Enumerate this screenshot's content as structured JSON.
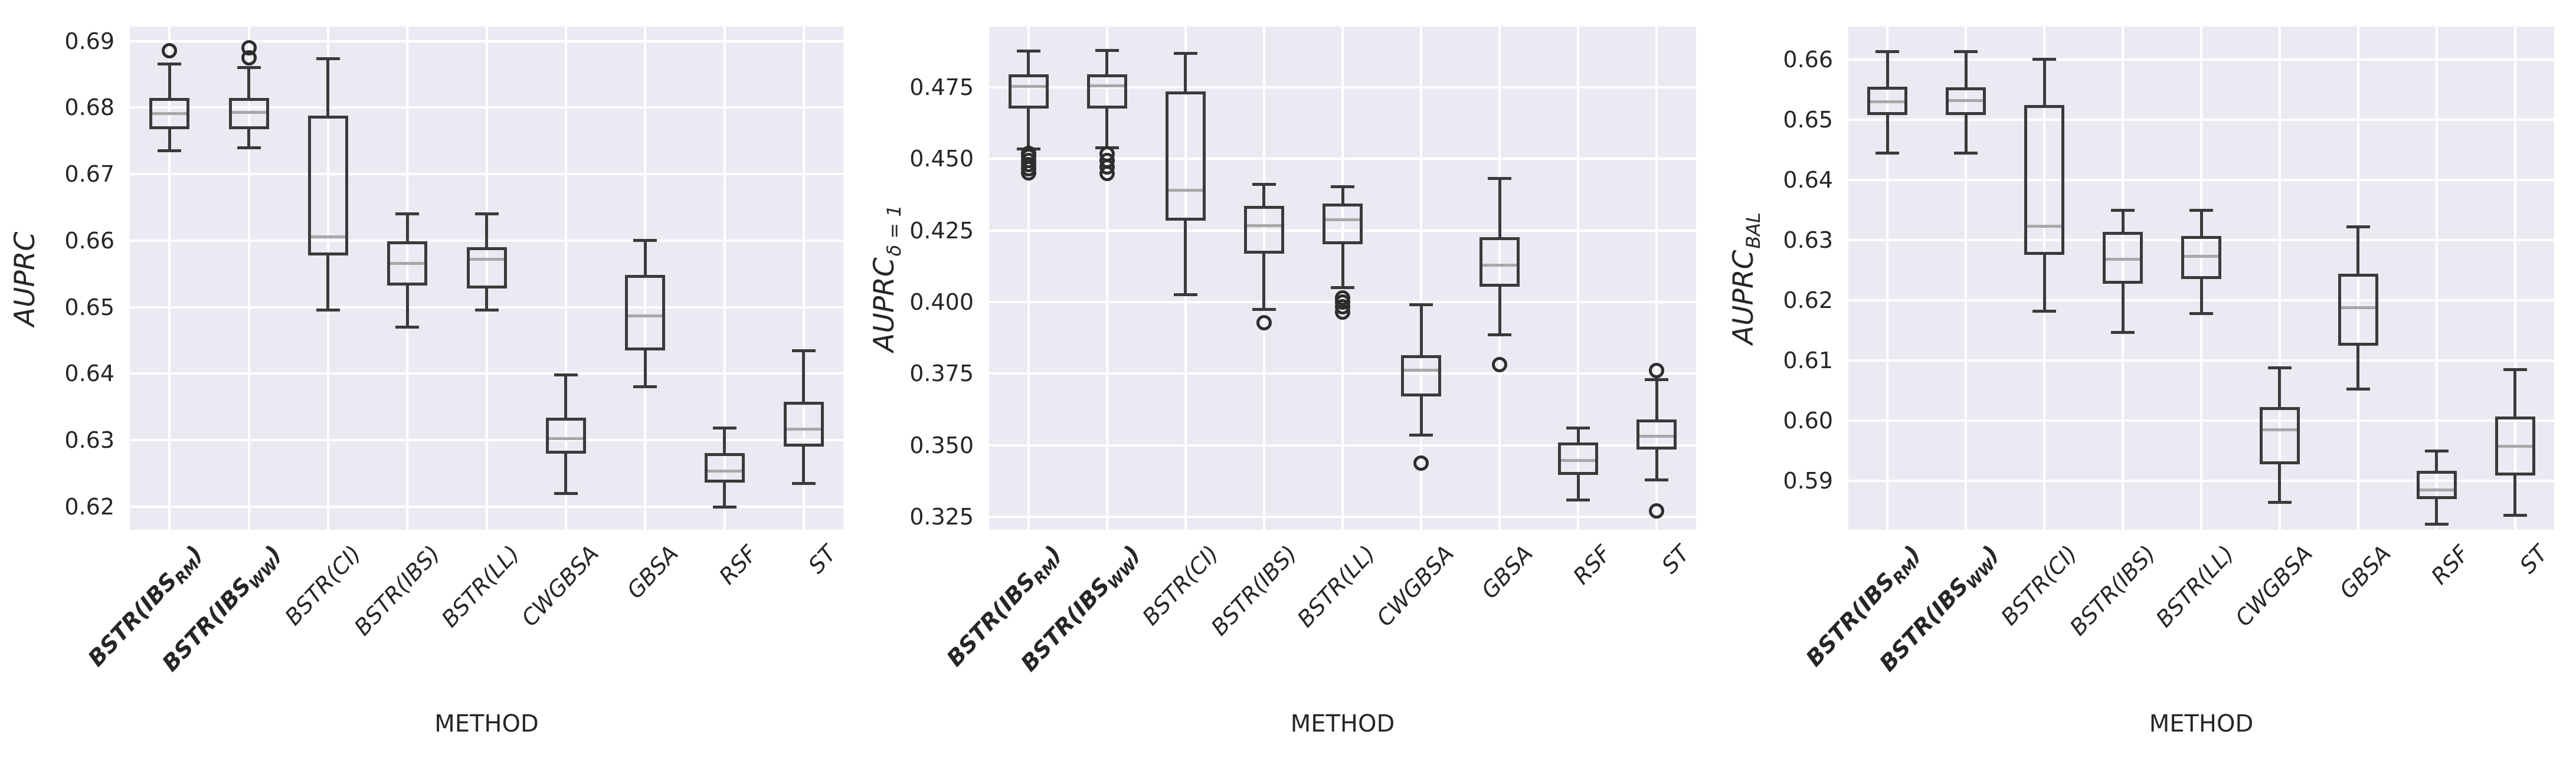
{
  "figure": {
    "xlabel": "METHOD",
    "colors": {
      "background": "#ffffff",
      "plot_background": "#eaeaf2",
      "grid": "#ffffff",
      "box_edge": "#3a3a3a",
      "median": "#a8a8a8",
      "outlier_edge": "#2d2d2d",
      "text": "#262626"
    }
  },
  "categories": [
    {
      "pre": "BSTR(IBS",
      "sub": "RM",
      "post": ")",
      "bold": true,
      "name": "BSTR(IBS_RM)"
    },
    {
      "pre": "BSTR(IBS",
      "sub": "WW",
      "post": ")",
      "bold": true,
      "name": "BSTR(IBS_WW)"
    },
    {
      "pre": "BSTR(CI)",
      "sub": "",
      "post": "",
      "bold": false,
      "name": "BSTR(CI)"
    },
    {
      "pre": "BSTR(IBS)",
      "sub": "",
      "post": "",
      "bold": false,
      "name": "BSTR(IBS)"
    },
    {
      "pre": "BSTR(LL)",
      "sub": "",
      "post": "",
      "bold": false,
      "name": "BSTR(LL)"
    },
    {
      "pre": "CWGBSA",
      "sub": "",
      "post": "",
      "bold": false,
      "name": "CWGBSA"
    },
    {
      "pre": "GBSA",
      "sub": "",
      "post": "",
      "bold": false,
      "name": "GBSA"
    },
    {
      "pre": "RSF",
      "sub": "",
      "post": "",
      "bold": false,
      "name": "RSF"
    },
    {
      "pre": "ST",
      "sub": "",
      "post": "",
      "bold": false,
      "name": "ST"
    }
  ],
  "chart_data": [
    {
      "type": "box",
      "ylabel": {
        "main": "AUPRC",
        "sub": ""
      },
      "xlabel": "METHOD",
      "grid": true,
      "ylim": [
        0.6165,
        0.6922
      ],
      "ytick_values": [
        0.62,
        0.63,
        0.64,
        0.65,
        0.66,
        0.67,
        0.68,
        0.69
      ],
      "ytick_labels": [
        "0.62",
        "0.63",
        "0.64",
        "0.65",
        "0.66",
        "0.67",
        "0.68",
        "0.69"
      ],
      "series": [
        {
          "method": "BSTR(IBS_RM)",
          "whislo": 0.6735,
          "q1": 0.677,
          "med": 0.6791,
          "q3": 0.6812,
          "whishi": 0.6866,
          "fliers": [
            0.6886
          ]
        },
        {
          "method": "BSTR(IBS_WW)",
          "whislo": 0.674,
          "q1": 0.677,
          "med": 0.6793,
          "q3": 0.6812,
          "whishi": 0.686,
          "fliers": [
            0.6875,
            0.689
          ]
        },
        {
          "method": "BSTR(CI)",
          "whislo": 0.6496,
          "q1": 0.658,
          "med": 0.6606,
          "q3": 0.6786,
          "whishi": 0.6874,
          "fliers": []
        },
        {
          "method": "BSTR(IBS)",
          "whislo": 0.647,
          "q1": 0.6535,
          "med": 0.6566,
          "q3": 0.6597,
          "whishi": 0.664,
          "fliers": []
        },
        {
          "method": "BSTR(LL)",
          "whislo": 0.6496,
          "q1": 0.653,
          "med": 0.6572,
          "q3": 0.6588,
          "whishi": 0.664,
          "fliers": []
        },
        {
          "method": "CWGBSA",
          "whislo": 0.622,
          "q1": 0.6282,
          "med": 0.6302,
          "q3": 0.6331,
          "whishi": 0.6398,
          "fliers": []
        },
        {
          "method": "GBSA",
          "whislo": 0.638,
          "q1": 0.6437,
          "med": 0.6487,
          "q3": 0.6546,
          "whishi": 0.66,
          "fliers": []
        },
        {
          "method": "RSF",
          "whislo": 0.6199,
          "q1": 0.6238,
          "med": 0.6253,
          "q3": 0.6278,
          "whishi": 0.6318,
          "fliers": []
        },
        {
          "method": "ST",
          "whislo": 0.6235,
          "q1": 0.6292,
          "med": 0.6316,
          "q3": 0.6355,
          "whishi": 0.6434,
          "fliers": []
        }
      ]
    },
    {
      "type": "box",
      "ylabel": {
        "main": "AUPRC",
        "sub": "δ = 1"
      },
      "xlabel": "METHOD",
      "grid": true,
      "ylim": [
        0.3205,
        0.4962
      ],
      "ytick_values": [
        0.325,
        0.35,
        0.375,
        0.4,
        0.425,
        0.45,
        0.475
      ],
      "ytick_labels": [
        "0.325",
        "0.350",
        "0.375",
        "0.400",
        "0.425",
        "0.450",
        "0.475"
      ],
      "series": [
        {
          "method": "BSTR(IBS_RM)",
          "whislo": 0.4535,
          "q1": 0.468,
          "med": 0.4752,
          "q3": 0.4789,
          "whishi": 0.4876,
          "fliers": [
            0.4452,
            0.4466,
            0.448,
            0.4494,
            0.4508,
            0.452
          ]
        },
        {
          "method": "BSTR(IBS_WW)",
          "whislo": 0.4538,
          "q1": 0.468,
          "med": 0.4755,
          "q3": 0.479,
          "whishi": 0.4878,
          "fliers": [
            0.445,
            0.4472,
            0.4495,
            0.4518
          ]
        },
        {
          "method": "BSTR(CI)",
          "whislo": 0.4025,
          "q1": 0.429,
          "med": 0.439,
          "q3": 0.473,
          "whishi": 0.4868,
          "fliers": []
        },
        {
          "method": "BSTR(IBS)",
          "whislo": 0.3975,
          "q1": 0.4175,
          "med": 0.4266,
          "q3": 0.433,
          "whishi": 0.441,
          "fliers": [
            0.3928
          ]
        },
        {
          "method": "BSTR(LL)",
          "whislo": 0.405,
          "q1": 0.4208,
          "med": 0.4288,
          "q3": 0.4338,
          "whishi": 0.4402,
          "fliers": [
            0.3966,
            0.3984,
            0.4001,
            0.4014
          ]
        },
        {
          "method": "CWGBSA",
          "whislo": 0.3536,
          "q1": 0.3675,
          "med": 0.3763,
          "q3": 0.381,
          "whishi": 0.399,
          "fliers": [
            0.3438
          ]
        },
        {
          "method": "GBSA",
          "whislo": 0.3886,
          "q1": 0.4058,
          "med": 0.4128,
          "q3": 0.4222,
          "whishi": 0.4432,
          "fliers": [
            0.3782
          ]
        },
        {
          "method": "RSF",
          "whislo": 0.331,
          "q1": 0.3401,
          "med": 0.3446,
          "q3": 0.3505,
          "whishi": 0.356,
          "fliers": []
        },
        {
          "method": "ST",
          "whislo": 0.338,
          "q1": 0.349,
          "med": 0.3532,
          "q3": 0.3585,
          "whishi": 0.373,
          "fliers": [
            0.3762,
            0.327
          ]
        }
      ]
    },
    {
      "type": "box",
      "ylabel": {
        "main": "AUPRC",
        "sub": "BAL"
      },
      "xlabel": "METHOD",
      "grid": true,
      "ylim": [
        0.5819,
        0.6655
      ],
      "ytick_values": [
        0.59,
        0.6,
        0.61,
        0.62,
        0.63,
        0.64,
        0.65,
        0.66
      ],
      "ytick_labels": [
        "0.59",
        "0.60",
        "0.61",
        "0.62",
        "0.63",
        "0.64",
        "0.65",
        "0.66"
      ],
      "series": [
        {
          "method": "BSTR(IBS_RM)",
          "whislo": 0.6445,
          "q1": 0.651,
          "med": 0.653,
          "q3": 0.6553,
          "whishi": 0.6613,
          "fliers": []
        },
        {
          "method": "BSTR(IBS_WW)",
          "whislo": 0.6445,
          "q1": 0.651,
          "med": 0.6532,
          "q3": 0.6552,
          "whishi": 0.6613,
          "fliers": []
        },
        {
          "method": "BSTR(CI)",
          "whislo": 0.6182,
          "q1": 0.6278,
          "med": 0.6323,
          "q3": 0.6522,
          "whishi": 0.6601,
          "fliers": []
        },
        {
          "method": "BSTR(IBS)",
          "whislo": 0.6147,
          "q1": 0.623,
          "med": 0.6268,
          "q3": 0.6311,
          "whishi": 0.635,
          "fliers": []
        },
        {
          "method": "BSTR(LL)",
          "whislo": 0.6178,
          "q1": 0.6238,
          "med": 0.6273,
          "q3": 0.6305,
          "whishi": 0.635,
          "fliers": []
        },
        {
          "method": "CWGBSA",
          "whislo": 0.5865,
          "q1": 0.593,
          "med": 0.5985,
          "q3": 0.602,
          "whishi": 0.6088,
          "fliers": []
        },
        {
          "method": "GBSA",
          "whislo": 0.6053,
          "q1": 0.6127,
          "med": 0.6188,
          "q3": 0.6242,
          "whishi": 0.6322,
          "fliers": []
        },
        {
          "method": "RSF",
          "whislo": 0.5828,
          "q1": 0.5872,
          "med": 0.5885,
          "q3": 0.5915,
          "whishi": 0.595,
          "fliers": []
        },
        {
          "method": "ST",
          "whislo": 0.5843,
          "q1": 0.5912,
          "med": 0.5958,
          "q3": 0.6005,
          "whishi": 0.6085,
          "fliers": []
        }
      ]
    }
  ]
}
